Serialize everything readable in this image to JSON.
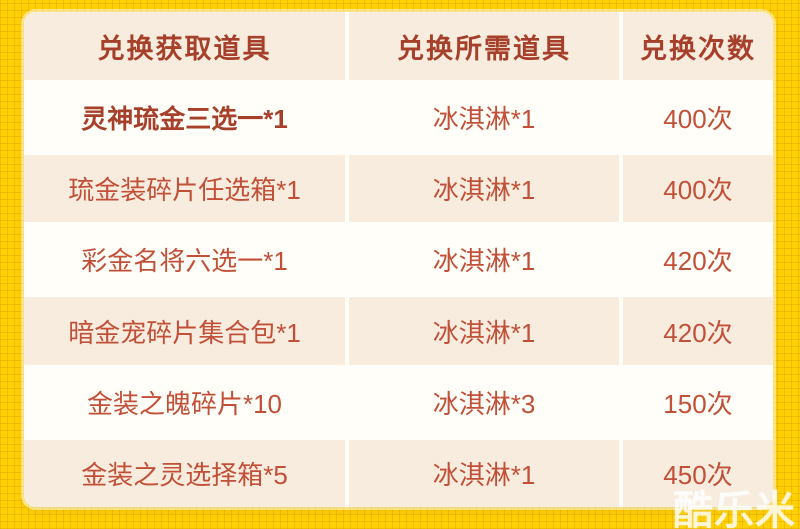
{
  "table": {
    "headers": [
      "兑换获取道具",
      "兑换所需道具",
      "兑换次数"
    ],
    "rows": [
      [
        "灵神琉金三选一*1",
        "冰淇淋*1",
        "400次"
      ],
      [
        "琉金装碎片任选箱*1",
        "冰淇淋*1",
        "400次"
      ],
      [
        "彩金名将六选一*1",
        "冰淇淋*1",
        "420次"
      ],
      [
        "暗金宠碎片集合包*1",
        "冰淇淋*1",
        "420次"
      ],
      [
        "金装之魄碎片*10",
        "冰淇淋*3",
        "150次"
      ],
      [
        "金装之灵选择箱*5",
        "冰淇淋*1",
        "450次"
      ]
    ]
  },
  "watermark": "酷乐米",
  "colors": {
    "border_yellow": "#FFD104",
    "border_grid_line": "#D89E00",
    "header_bg": "#F7ECDE",
    "row_alt_bg": "#F7ECDE",
    "row_bg": "#FFFEF8",
    "header_text": "#A6402A",
    "cell_text": "#C25038"
  }
}
